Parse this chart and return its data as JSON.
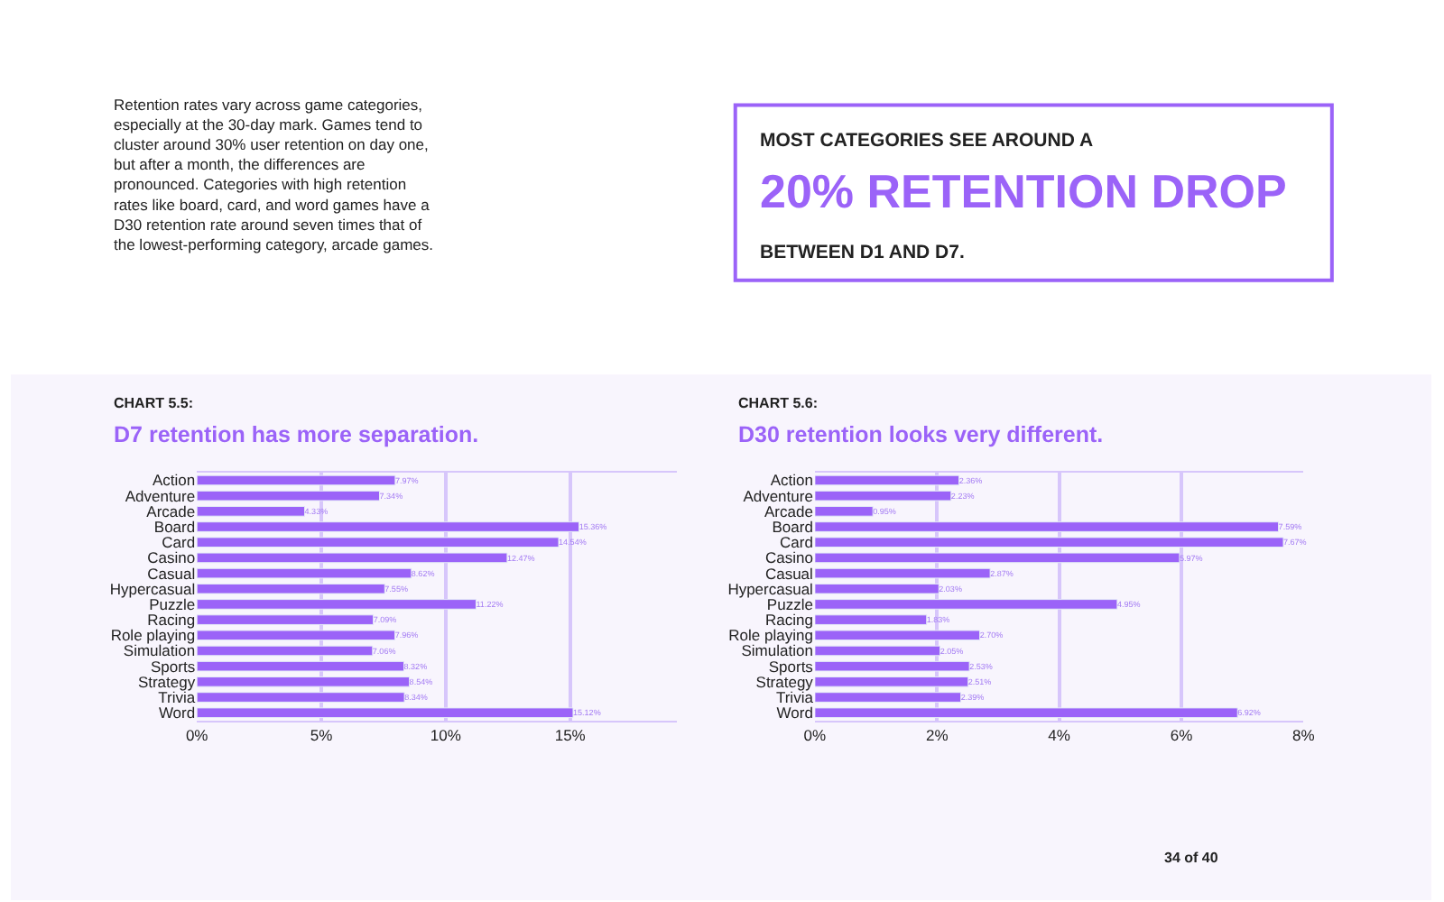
{
  "chart_data": [
    {
      "type": "other",
      "annotations": [
        "Retention rates vary across game categories, especially at the 30-day mark. Games tend to cluster around 30% user retention on day one, but after a month, the differences are pronounced. Categories with high retention rates like board, card, and word games have a D30 retention rate around seven times that of the lowest-performing category, arcade games.",
        "MOST CATEGORIES SEE AROUND A",
        "20% RETENTION DROP",
        "BETWEEN D1 AND D7.",
        "34 of 40"
      ]
    },
    {
      "type": "bar",
      "orientation": "horizontal",
      "subtitle": "CHART 5.5:",
      "title": "D7 retention has more separation.",
      "categories": [
        "Action",
        "Adventure",
        "Arcade",
        "Board",
        "Card",
        "Casino",
        "Casual",
        "Hypercasual",
        "Puzzle",
        "Racing",
        "Role playing",
        "Simulation",
        "Sports",
        "Strategy",
        "Trivia",
        "Word"
      ],
      "values": [
        7.97,
        7.34,
        4.33,
        15.36,
        14.54,
        12.47,
        8.62,
        7.55,
        11.22,
        7.09,
        7.96,
        7.06,
        8.32,
        8.54,
        8.34,
        15.12
      ],
      "value_labels": [
        "7.97%",
        "7.34%",
        "4.33%",
        "15.36%",
        "14.54%",
        "12.47%",
        "8.62%",
        "7.55%",
        "11.22%",
        "7.09%",
        "7.96%",
        "7.06%",
        "8.32%",
        "8.54%",
        "8.34%",
        "15.12%"
      ],
      "color": "#9b63f8",
      "xlim": [
        0,
        19.3
      ],
      "xticks": [
        {
          "value": 0,
          "label": "0%"
        },
        {
          "value": 5,
          "label": "5%"
        },
        {
          "value": 10,
          "label": "10%"
        },
        {
          "value": 15,
          "label": "15%"
        }
      ],
      "grid": "x"
    },
    {
      "type": "bar",
      "orientation": "horizontal",
      "subtitle": "CHART 5.6:",
      "title": "D30 retention looks very different.",
      "categories": [
        "Action",
        "Adventure",
        "Arcade",
        "Board",
        "Card",
        "Casino",
        "Casual",
        "Hypercasual",
        "Puzzle",
        "Racing",
        "Role playing",
        "Simulation",
        "Sports",
        "Strategy",
        "Trivia",
        "Word"
      ],
      "values": [
        2.36,
        2.23,
        0.95,
        7.59,
        7.67,
        5.97,
        2.87,
        2.03,
        4.95,
        1.83,
        2.7,
        2.05,
        2.53,
        2.51,
        2.39,
        6.92
      ],
      "value_labels": [
        "2.36%",
        "2.23%",
        "0.95%",
        "7.59%",
        "7.67%",
        "5.97%",
        "2.87%",
        "2.03%",
        "4.95%",
        "1.83%",
        "2.70%",
        "2.05%",
        "2.53%",
        "2.51%",
        "2.39%",
        "6.92%"
      ],
      "color": "#9b63f8",
      "xlim": [
        0,
        8
      ],
      "xticks": [
        {
          "value": 0,
          "label": "0%"
        },
        {
          "value": 2,
          "label": "2%"
        },
        {
          "value": 4,
          "label": "4%"
        },
        {
          "value": 6,
          "label": "6%"
        },
        {
          "value": 8,
          "label": "8%"
        }
      ],
      "grid": "x"
    }
  ]
}
